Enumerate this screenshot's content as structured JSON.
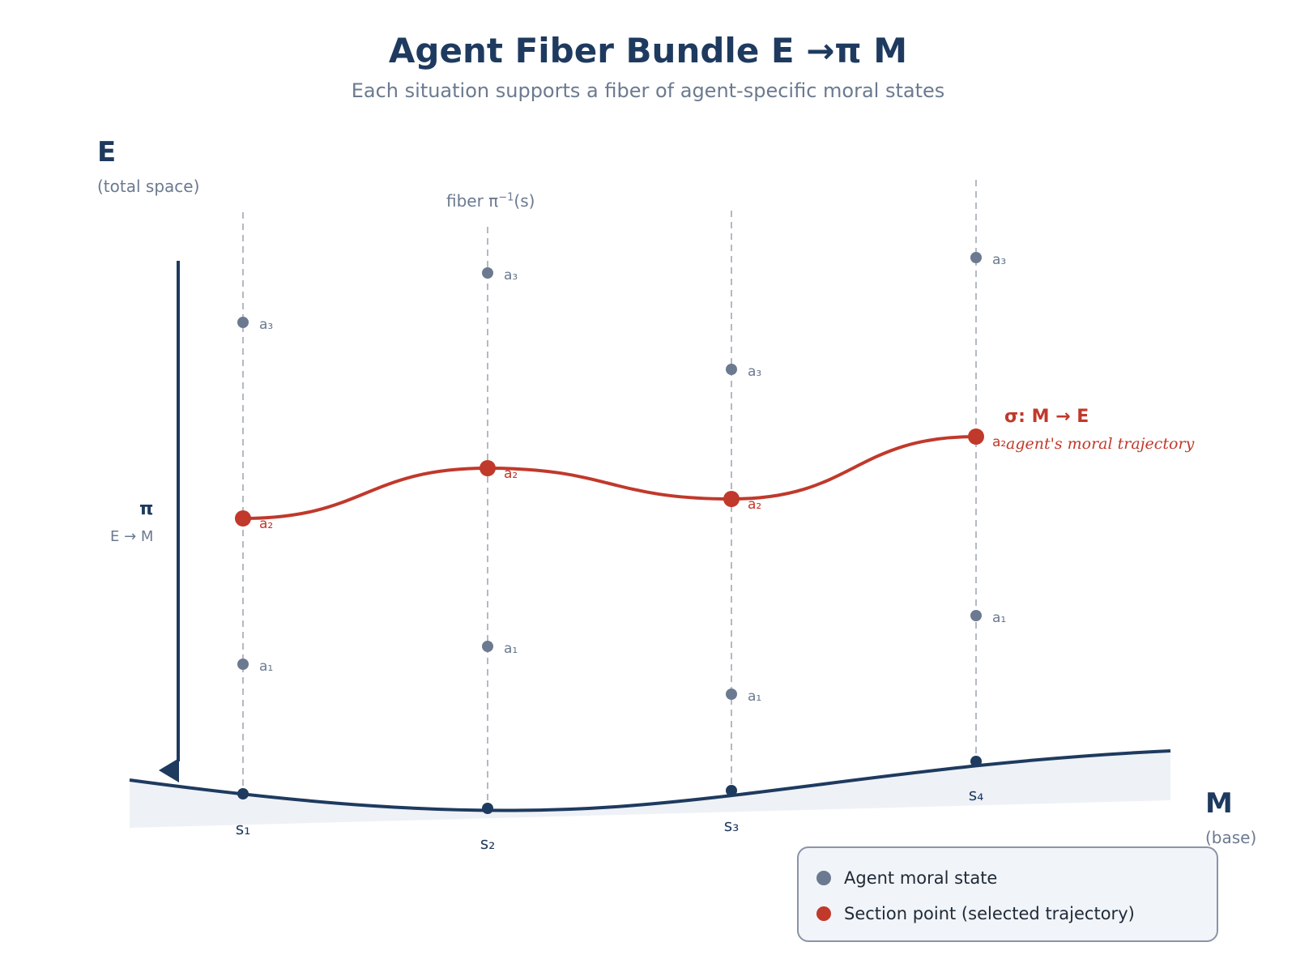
{
  "title": "Agent Fiber Bundle E →π M",
  "subtitle": "Each situation supports a fiber of agent-specific moral states",
  "total_space": {
    "symbol": "E",
    "caption": "(total space)"
  },
  "base_space": {
    "symbol": "M",
    "caption": "(base)"
  },
  "projection": {
    "symbol": "π",
    "map": "E → M"
  },
  "fiber_label": {
    "text": "fiber π",
    "superscript": "−1",
    "suffix": "(s)"
  },
  "section": {
    "title": "σ: M → E",
    "description": "agent's moral trajectory",
    "color": "#c0392b"
  },
  "colors": {
    "navy": "#1e3a5f",
    "agent_state": "#6b7a90",
    "section": "#c0392b",
    "fiber_line": "#b4b9c3",
    "base_fill": "#eef1f6"
  },
  "situations": [
    {
      "label": "s₁",
      "agents": [
        {
          "label": "a₁",
          "role": "state"
        },
        {
          "label": "a₂",
          "role": "section"
        },
        {
          "label": "a₃",
          "role": "state"
        }
      ]
    },
    {
      "label": "s₂",
      "agents": [
        {
          "label": "a₁",
          "role": "state"
        },
        {
          "label": "a₂",
          "role": "section"
        },
        {
          "label": "a₃",
          "role": "state"
        }
      ]
    },
    {
      "label": "s₃",
      "agents": [
        {
          "label": "a₁",
          "role": "state"
        },
        {
          "label": "a₂",
          "role": "section"
        },
        {
          "label": "a₃",
          "role": "state"
        }
      ]
    },
    {
      "label": "s₄",
      "agents": [
        {
          "label": "a₁",
          "role": "state"
        },
        {
          "label": "a₂",
          "role": "section"
        },
        {
          "label": "a₃",
          "role": "state"
        }
      ]
    }
  ],
  "legend": [
    {
      "label": "Agent moral state",
      "color": "#6b7a90"
    },
    {
      "label": "Section point (selected trajectory)",
      "color": "#c0392b"
    }
  ]
}
